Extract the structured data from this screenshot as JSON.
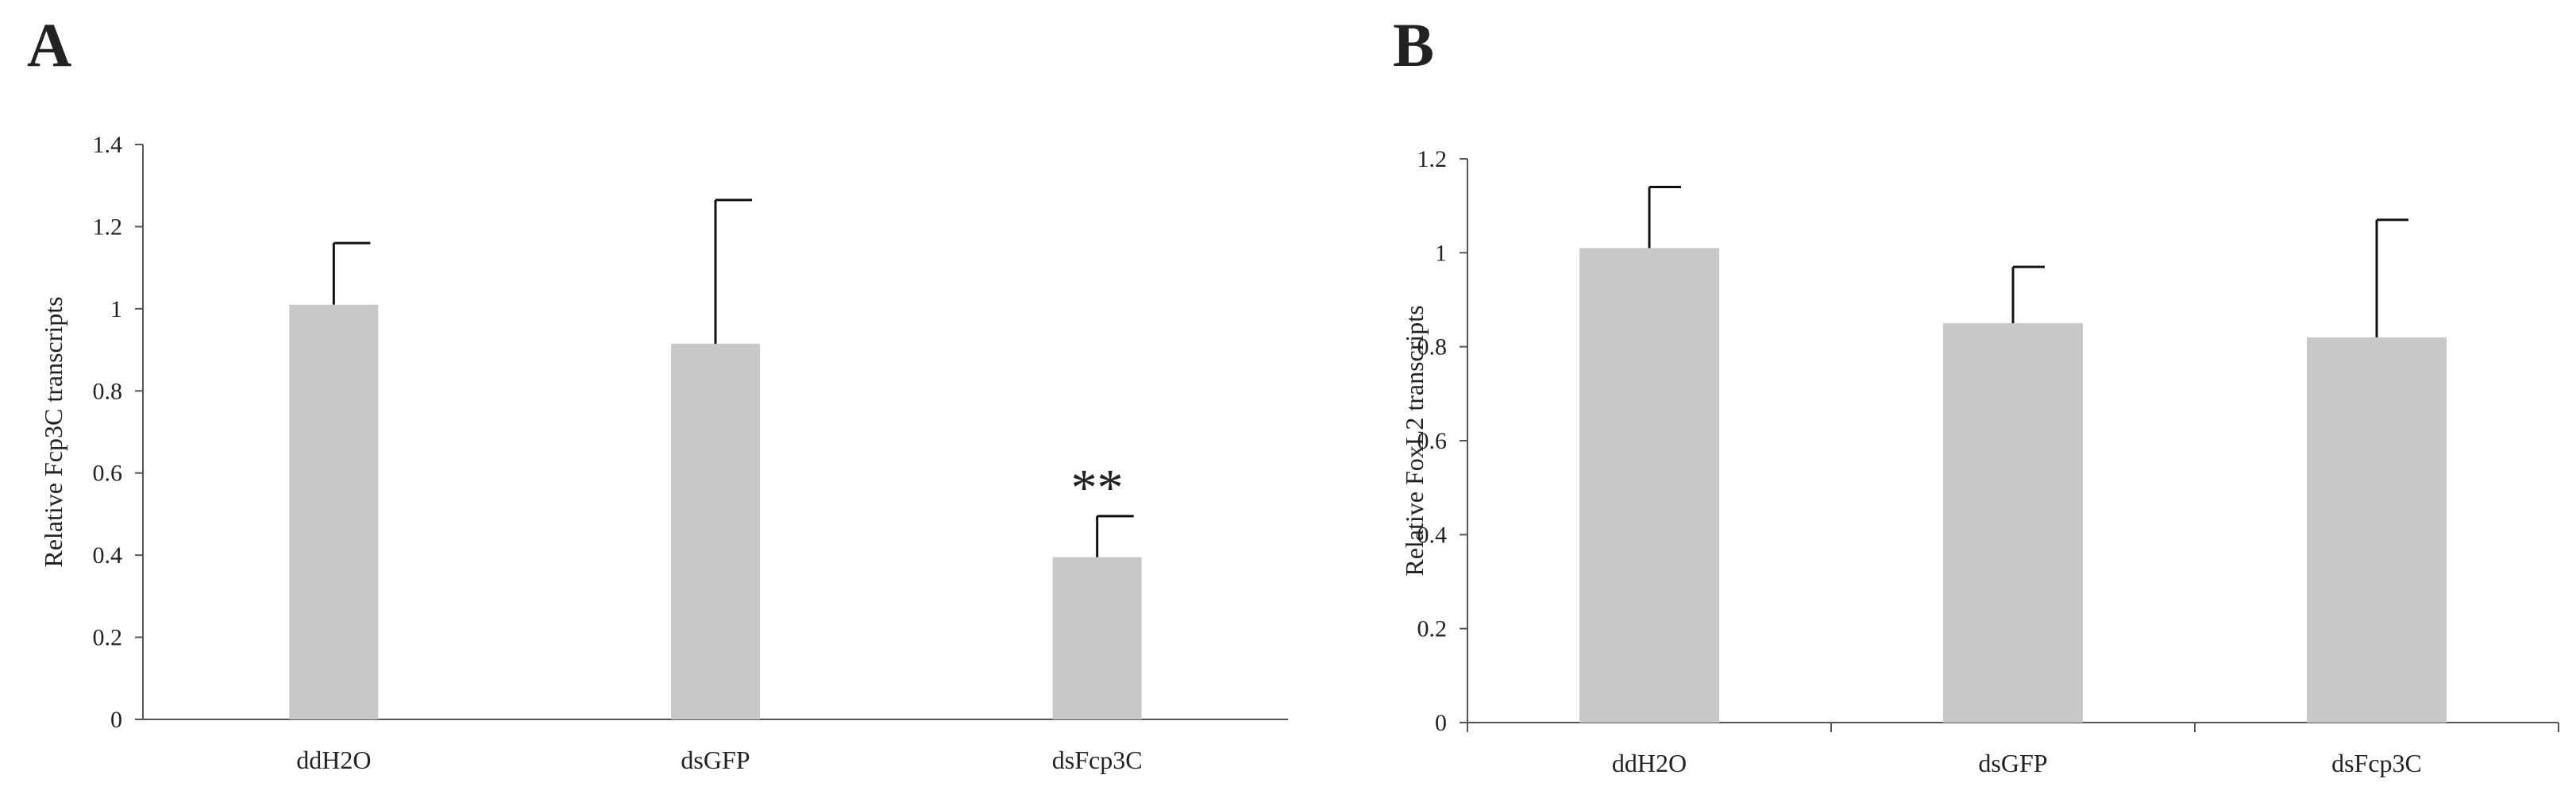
{
  "chart_data": [
    {
      "type": "bar",
      "panel_label": "A",
      "categories": [
        "ddH2O",
        "dsGFP",
        "dsFcp3C"
      ],
      "values": [
        1.01,
        0.915,
        0.395
      ],
      "error_upper": [
        0.15,
        0.35,
        0.1
      ],
      "annotations": [
        "",
        "",
        "**"
      ],
      "ylabel": "Relative  Fcp3C transcripts",
      "xlabel": "",
      "ylim": [
        0,
        1.4
      ],
      "yticks": [
        0,
        0.2,
        0.4,
        0.6,
        0.8,
        1,
        1.2,
        1.4
      ],
      "ytick_labels": [
        "0",
        "0.2",
        "0.4",
        "0.6",
        "0.8",
        "1",
        "1.2",
        "1.4"
      ],
      "grid": false,
      "legend": "none",
      "bar_color": "#c8c8c8"
    },
    {
      "type": "bar",
      "panel_label": "B",
      "categories": [
        "ddH2O",
        "dsGFP",
        "dsFcp3C"
      ],
      "values": [
        1.01,
        0.85,
        0.82
      ],
      "error_upper": [
        0.13,
        0.12,
        0.25
      ],
      "annotations": [
        "",
        "",
        ""
      ],
      "ylabel": "Relative  FoxL2 transcripts",
      "xlabel": "",
      "ylim": [
        0,
        1.2
      ],
      "yticks": [
        0,
        0.2,
        0.4,
        0.6,
        0.8,
        1,
        1.2
      ],
      "ytick_labels": [
        "0",
        "0.2",
        "0.4",
        "0.6",
        "0.8",
        "1",
        "1.2"
      ],
      "grid": false,
      "legend": "none",
      "bar_color": "#c8c8c8"
    }
  ]
}
